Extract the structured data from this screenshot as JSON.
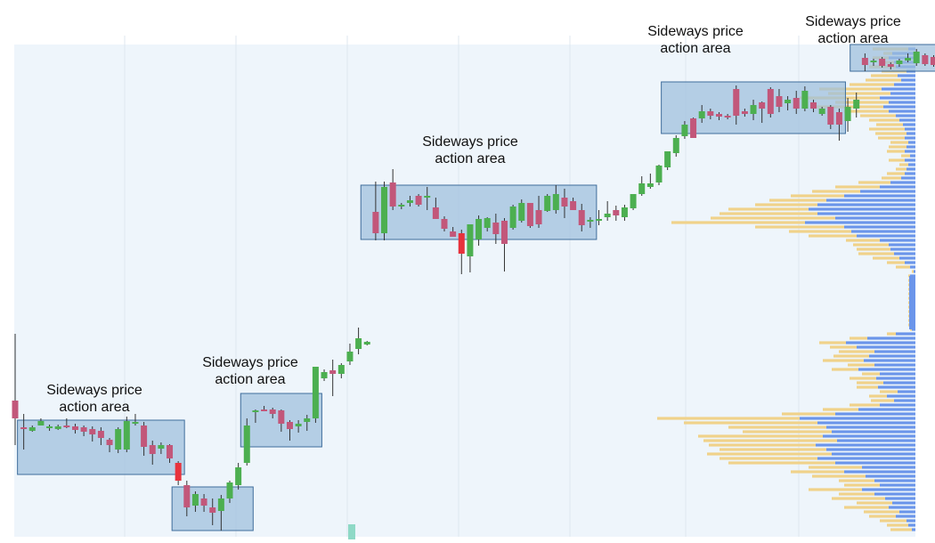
{
  "chart_data": {
    "type": "candlestick",
    "title": "",
    "xlabel": "",
    "ylabel": "",
    "grid": true,
    "colors": {
      "bull": "#4caf50",
      "bear": "#c2577a",
      "bear_strong": "#e8323c",
      "zone_fill": "#9ebfdd",
      "zone_stroke": "#3f6d9c",
      "profile_buy": "#6b95ea",
      "profile_sell": "#f0d28a",
      "plot_bg": "#eef5fb"
    },
    "ylim": [
      0,
      560
    ],
    "candles": [
      [
        0,
        0,
        375,
        450,
        500,
        470,
        "s"
      ],
      [
        1,
        0,
        465,
        480,
        505,
        480,
        "s"
      ],
      [
        2,
        0,
        478,
        480,
        485,
        484,
        "b"
      ],
      [
        3,
        0,
        470,
        473,
        478,
        478,
        "b"
      ],
      [
        4,
        0,
        477,
        479,
        484,
        481,
        "b"
      ],
      [
        5,
        0,
        477,
        479,
        483,
        482,
        "b"
      ],
      [
        6,
        0,
        470,
        478,
        481,
        480,
        "s"
      ],
      [
        7,
        0,
        476,
        479,
        487,
        483,
        "s"
      ],
      [
        8,
        0,
        478,
        480,
        490,
        485,
        "s"
      ],
      [
        9,
        0,
        479,
        482,
        496,
        488,
        "s"
      ],
      [
        10,
        0,
        480,
        484,
        500,
        492,
        "s"
      ],
      [
        11,
        0,
        492,
        494,
        508,
        500,
        "s"
      ],
      [
        12,
        0,
        480,
        482,
        509,
        505,
        "b"
      ],
      [
        13,
        0,
        468,
        473,
        508,
        505,
        "b"
      ],
      [
        14,
        0,
        465,
        474,
        478,
        474,
        "b"
      ],
      [
        15,
        0,
        474,
        478,
        512,
        502,
        "s"
      ],
      [
        16,
        0,
        495,
        500,
        522,
        510,
        "s"
      ],
      [
        17,
        0,
        497,
        500,
        510,
        504,
        "b"
      ],
      [
        18,
        0,
        499,
        500,
        520,
        515,
        "s"
      ],
      [
        19,
        0,
        518,
        520,
        545,
        540,
        "x"
      ],
      [
        20,
        0,
        540,
        545,
        580,
        570,
        "s"
      ],
      [
        21,
        0,
        552,
        555,
        575,
        568,
        "b"
      ],
      [
        22,
        0,
        555,
        560,
        575,
        568,
        "s"
      ],
      [
        23,
        0,
        560,
        570,
        590,
        576,
        "s"
      ],
      [
        24,
        0,
        556,
        560,
        596,
        574,
        "b"
      ],
      [
        25,
        0,
        540,
        542,
        565,
        560,
        "b"
      ],
      [
        26,
        0,
        520,
        525,
        550,
        545,
        "b"
      ],
      [
        27,
        0,
        470,
        478,
        523,
        520,
        "b"
      ],
      [
        28,
        0,
        460,
        461,
        475,
        462,
        "b"
      ],
      [
        29,
        0,
        456,
        460,
        462,
        460,
        "s"
      ],
      [
        30,
        0,
        458,
        460,
        470,
        465,
        "s"
      ],
      [
        31,
        0,
        460,
        461,
        485,
        476,
        "s"
      ],
      [
        32,
        0,
        472,
        474,
        495,
        482,
        "s"
      ],
      [
        33,
        0,
        472,
        476,
        486,
        479,
        "b"
      ],
      [
        34,
        0,
        466,
        470,
        484,
        474,
        "b"
      ],
      [
        35,
        0,
        412,
        412,
        475,
        470,
        "b"
      ],
      [
        36,
        0,
        415,
        418,
        428,
        425,
        "b"
      ],
      [
        37,
        0,
        404,
        416,
        445,
        420,
        "s"
      ],
      [
        38,
        0,
        408,
        410,
        425,
        420,
        "b"
      ],
      [
        39,
        0,
        386,
        395,
        410,
        406,
        "b"
      ],
      [
        40,
        0,
        368,
        380,
        398,
        392,
        "b"
      ],
      [
        41,
        0,
        383,
        384,
        388,
        387,
        "b"
      ],
      [
        42,
        0,
        204,
        238,
        270,
        262,
        "s"
      ],
      [
        43,
        0,
        204,
        210,
        270,
        262,
        "b"
      ],
      [
        44,
        0,
        190,
        205,
        236,
        232,
        "s"
      ],
      [
        45,
        0,
        228,
        230,
        235,
        232,
        "b"
      ],
      [
        46,
        0,
        220,
        225,
        232,
        228,
        "b"
      ],
      [
        47,
        0,
        218,
        220,
        232,
        230,
        "s"
      ],
      [
        48,
        0,
        210,
        220,
        236,
        222,
        "b"
      ],
      [
        49,
        0,
        222,
        233,
        246,
        246,
        "s"
      ],
      [
        50,
        0,
        243,
        246,
        260,
        257,
        "s"
      ],
      [
        51,
        0,
        255,
        260,
        266,
        266,
        "s"
      ],
      [
        52,
        0,
        258,
        262,
        308,
        285,
        "x"
      ],
      [
        53,
        0,
        252,
        252,
        306,
        288,
        "b"
      ],
      [
        54,
        0,
        242,
        246,
        276,
        269,
        "b"
      ],
      [
        55,
        0,
        244,
        245,
        260,
        256,
        "b"
      ],
      [
        56,
        0,
        240,
        250,
        274,
        263,
        "s"
      ],
      [
        57,
        0,
        245,
        248,
        305,
        274,
        "s"
      ],
      [
        58,
        0,
        230,
        232,
        258,
        256,
        "b"
      ],
      [
        59,
        0,
        224,
        228,
        250,
        248,
        "b"
      ],
      [
        60,
        0,
        228,
        228,
        256,
        254,
        "s"
      ],
      [
        61,
        0,
        220,
        236,
        256,
        252,
        "s"
      ],
      [
        62,
        0,
        218,
        220,
        238,
        237,
        "b"
      ],
      [
        63,
        0,
        208,
        218,
        240,
        236,
        "b"
      ],
      [
        64,
        0,
        212,
        222,
        245,
        232,
        "s"
      ],
      [
        65,
        0,
        222,
        226,
        236,
        236,
        "s"
      ],
      [
        66,
        0,
        229,
        236,
        260,
        253,
        "s"
      ],
      [
        67,
        0,
        244,
        247,
        256,
        249,
        "b"
      ],
      [
        68,
        0,
        236,
        246,
        253,
        248,
        "b"
      ],
      [
        69,
        0,
        226,
        240,
        248,
        244,
        "b"
      ],
      [
        70,
        0,
        231,
        236,
        248,
        242,
        "s"
      ],
      [
        71,
        0,
        230,
        233,
        248,
        244,
        "b"
      ],
      [
        72,
        0,
        218,
        218,
        236,
        234,
        "b"
      ],
      [
        73,
        0,
        198,
        206,
        220,
        218,
        "b"
      ],
      [
        74,
        0,
        195,
        206,
        212,
        210,
        "b"
      ],
      [
        75,
        0,
        185,
        186,
        208,
        205,
        "b"
      ],
      [
        76,
        0,
        170,
        170,
        191,
        188,
        "b"
      ],
      [
        77,
        0,
        152,
        155,
        176,
        172,
        "b"
      ],
      [
        78,
        0,
        136,
        140,
        156,
        153,
        "b"
      ],
      [
        79,
        0,
        132,
        133,
        155,
        155,
        "s"
      ],
      [
        80,
        0,
        118,
        125,
        138,
        133,
        "b"
      ],
      [
        81,
        0,
        122,
        125,
        134,
        130,
        "s"
      ],
      [
        82,
        0,
        126,
        128,
        135,
        131,
        "s"
      ],
      [
        83,
        0,
        128,
        130,
        134,
        132,
        "s"
      ],
      [
        84,
        0,
        96,
        100,
        140,
        130,
        "s"
      ],
      [
        85,
        0,
        122,
        125,
        131,
        128,
        "s"
      ],
      [
        86,
        0,
        112,
        118,
        135,
        128,
        "b"
      ],
      [
        87,
        0,
        114,
        115,
        138,
        122,
        "s"
      ],
      [
        88,
        0,
        98,
        100,
        132,
        128,
        "s"
      ],
      [
        89,
        0,
        100,
        108,
        126,
        120,
        "s"
      ],
      [
        90,
        0,
        108,
        112,
        124,
        116,
        "b"
      ],
      [
        91,
        0,
        102,
        110,
        128,
        122,
        "s"
      ],
      [
        92,
        0,
        97,
        102,
        125,
        122,
        "b"
      ],
      [
        93,
        0,
        112,
        115,
        126,
        122,
        "s"
      ],
      [
        94,
        0,
        120,
        122,
        130,
        128,
        "b"
      ],
      [
        95,
        0,
        118,
        120,
        145,
        140,
        "s"
      ],
      [
        96,
        0,
        122,
        126,
        158,
        140,
        "s"
      ],
      [
        97,
        0,
        110,
        120,
        148,
        136,
        "b"
      ],
      [
        98,
        0,
        104,
        112,
        132,
        122,
        "b"
      ],
      [
        99,
        0,
        60,
        65,
        80,
        73,
        "s"
      ],
      [
        100,
        0,
        66,
        68,
        74,
        70,
        "b"
      ],
      [
        101,
        0,
        64,
        66,
        76,
        74,
        "s"
      ],
      [
        102,
        0,
        70,
        72,
        78,
        75,
        "s"
      ],
      [
        103,
        0,
        66,
        68,
        75,
        72,
        "b"
      ],
      [
        104,
        0,
        60,
        65,
        70,
        68,
        "b"
      ],
      [
        105,
        0,
        55,
        58,
        74,
        71,
        "b"
      ],
      [
        106,
        0,
        60,
        62,
        74,
        72,
        "s"
      ],
      [
        107,
        0,
        62,
        64,
        75,
        73,
        "s"
      ],
      [
        108,
        0,
        60,
        65,
        75,
        70,
        "s"
      ],
      [
        109,
        0,
        67,
        70,
        75,
        73,
        "b"
      ],
      [
        110,
        0,
        50,
        58,
        78,
        76,
        "b"
      ],
      [
        111,
        0,
        60,
        62,
        76,
        72,
        "s"
      ]
    ],
    "zones": [
      {
        "label": "Sideways price action area",
        "x0": 1,
        "x1": 19,
        "y0": 472,
        "y1": 533
      },
      {
        "label": "",
        "x0": 19,
        "x1": 27,
        "y0": 547,
        "y1": 596
      },
      {
        "label": "Sideways price action area",
        "x0": 27,
        "x1": 35,
        "y0": 442,
        "y1": 502
      },
      {
        "label": "Sideways price action area",
        "x0": 41,
        "x1": 67,
        "y0": 208,
        "y1": 269
      },
      {
        "label": "Sideways price action area",
        "x0": 76,
        "x1": 96,
        "y0": 92,
        "y1": 150
      },
      {
        "label": "Sideways price action area",
        "x0": 98,
        "x1": 111,
        "y0": 50,
        "y1": 80
      }
    ],
    "volume_profile": {
      "levels": [
        [
          55,
          8,
          40
        ],
        [
          60,
          26,
          10
        ],
        [
          65,
          30,
          18
        ],
        [
          70,
          24,
          12
        ],
        [
          75,
          22,
          30
        ],
        [
          80,
          10,
          28
        ],
        [
          85,
          20,
          30
        ],
        [
          90,
          16,
          40
        ],
        [
          95,
          24,
          50
        ],
        [
          100,
          38,
          70
        ],
        [
          105,
          28,
          70
        ],
        [
          110,
          40,
          90
        ],
        [
          115,
          30,
          60
        ],
        [
          120,
          36,
          80
        ],
        [
          125,
          30,
          50
        ],
        [
          130,
          22,
          40
        ],
        [
          135,
          18,
          34
        ],
        [
          140,
          14,
          30
        ],
        [
          145,
          12,
          40
        ],
        [
          150,
          10,
          35
        ],
        [
          155,
          12,
          30
        ],
        [
          160,
          8,
          20
        ],
        [
          165,
          10,
          20
        ],
        [
          170,
          12,
          20
        ],
        [
          175,
          6,
          10
        ],
        [
          180,
          12,
          18
        ],
        [
          185,
          8,
          10
        ],
        [
          190,
          10,
          12
        ],
        [
          195,
          12,
          20
        ],
        [
          200,
          16,
          22
        ],
        [
          205,
          28,
          36
        ],
        [
          210,
          40,
          50
        ],
        [
          215,
          62,
          54
        ],
        [
          220,
          80,
          60
        ],
        [
          225,
          100,
          64
        ],
        [
          230,
          110,
          70
        ],
        [
          235,
          120,
          90
        ],
        [
          240,
          110,
          110
        ],
        [
          245,
          90,
          140
        ],
        [
          250,
          124,
          150
        ],
        [
          255,
          80,
          100
        ],
        [
          260,
          72,
          70
        ],
        [
          265,
          66,
          54
        ],
        [
          270,
          40,
          38
        ],
        [
          275,
          30,
          40
        ],
        [
          280,
          28,
          38
        ],
        [
          285,
          24,
          40
        ],
        [
          290,
          18,
          30
        ],
        [
          295,
          12,
          20
        ],
        [
          300,
          6,
          16
        ],
        [
          305,
          2,
          2
        ],
        [
          310,
          6,
          2
        ],
        [
          315,
          6,
          2
        ],
        [
          320,
          6,
          2
        ],
        [
          325,
          6,
          2
        ],
        [
          330,
          6,
          2
        ],
        [
          335,
          6,
          2
        ],
        [
          340,
          6,
          2
        ],
        [
          345,
          6,
          2
        ],
        [
          350,
          6,
          2
        ],
        [
          355,
          6,
          2
        ],
        [
          360,
          6,
          2
        ],
        [
          365,
          6,
          2
        ],
        [
          370,
          4,
          2
        ],
        [
          375,
          22,
          10
        ],
        [
          380,
          54,
          20
        ],
        [
          385,
          78,
          30
        ],
        [
          390,
          66,
          30
        ],
        [
          395,
          46,
          40
        ],
        [
          400,
          52,
          40
        ],
        [
          405,
          58,
          46
        ],
        [
          410,
          46,
          30
        ],
        [
          415,
          64,
          30
        ],
        [
          420,
          40,
          20
        ],
        [
          425,
          44,
          30
        ],
        [
          430,
          36,
          30
        ],
        [
          435,
          42,
          24
        ],
        [
          440,
          20,
          20
        ],
        [
          445,
          32,
          20
        ],
        [
          450,
          24,
          26
        ],
        [
          455,
          40,
          34
        ],
        [
          460,
          64,
          40
        ],
        [
          465,
          90,
          60
        ],
        [
          470,
          130,
          160
        ],
        [
          475,
          110,
          150
        ],
        [
          480,
          100,
          110
        ],
        [
          485,
          94,
          100
        ],
        [
          490,
          104,
          140
        ],
        [
          495,
          88,
          150
        ],
        [
          500,
          112,
          120
        ],
        [
          505,
          100,
          120
        ],
        [
          510,
          94,
          140
        ],
        [
          515,
          110,
          110
        ],
        [
          520,
          90,
          120
        ],
        [
          525,
          60,
          60
        ],
        [
          530,
          80,
          60
        ],
        [
          535,
          56,
          60
        ],
        [
          540,
          46,
          40
        ],
        [
          545,
          40,
          40
        ],
        [
          550,
          60,
          60
        ],
        [
          555,
          46,
          40
        ],
        [
          560,
          34,
          60
        ],
        [
          565,
          26,
          40
        ],
        [
          570,
          30,
          50
        ],
        [
          575,
          18,
          40
        ],
        [
          580,
          22,
          30
        ],
        [
          585,
          10,
          30
        ],
        [
          590,
          8,
          24
        ],
        [
          595,
          4,
          24
        ]
      ]
    },
    "volume_marker": {
      "label": "",
      "x_index": 42
    }
  }
}
